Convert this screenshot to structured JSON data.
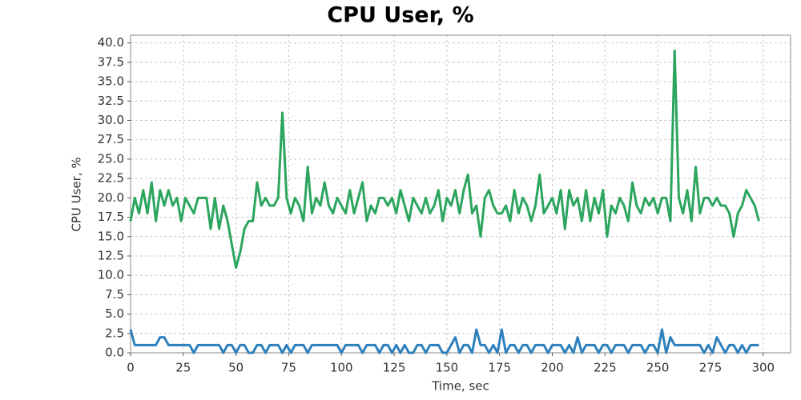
{
  "chart_data": {
    "type": "line",
    "title": "CPU User, %",
    "xlabel": "Time, sec",
    "ylabel": "CPU User, %",
    "x": [
      0,
      2,
      4,
      6,
      8,
      10,
      12,
      14,
      16,
      18,
      20,
      22,
      24,
      26,
      28,
      30,
      32,
      34,
      36,
      38,
      40,
      42,
      44,
      46,
      48,
      50,
      52,
      54,
      56,
      58,
      60,
      62,
      64,
      66,
      68,
      70,
      72,
      74,
      76,
      78,
      80,
      82,
      84,
      86,
      88,
      90,
      92,
      94,
      96,
      98,
      100,
      102,
      104,
      106,
      108,
      110,
      112,
      114,
      116,
      118,
      120,
      122,
      124,
      126,
      128,
      130,
      132,
      134,
      136,
      138,
      140,
      142,
      144,
      146,
      148,
      150,
      152,
      154,
      156,
      158,
      160,
      162,
      164,
      166,
      168,
      170,
      172,
      174,
      176,
      178,
      180,
      182,
      184,
      186,
      188,
      190,
      192,
      194,
      196,
      198,
      200,
      202,
      204,
      206,
      208,
      210,
      212,
      214,
      216,
      218,
      220,
      222,
      224,
      226,
      228,
      230,
      232,
      234,
      236,
      238,
      240,
      242,
      244,
      246,
      248,
      250,
      252,
      254,
      256,
      258,
      260,
      262,
      264,
      266,
      268,
      270,
      272,
      274,
      276,
      278,
      280,
      282,
      284,
      286,
      288,
      290,
      292,
      294,
      296,
      298
    ],
    "series": [
      {
        "color": "#2ca55e",
        "values": [
          17,
          20,
          18,
          21,
          18,
          22,
          17,
          21,
          19,
          21,
          19,
          20,
          17,
          20,
          19,
          18,
          20,
          20,
          20,
          16,
          20,
          16,
          19,
          17,
          14,
          11,
          13,
          16,
          17,
          17,
          22,
          19,
          20,
          19,
          19,
          20,
          31,
          20,
          18,
          20,
          19,
          17,
          24,
          18,
          20,
          19,
          22,
          19,
          18,
          20,
          19,
          18,
          21,
          18,
          20,
          22,
          17,
          19,
          18,
          20,
          20,
          19,
          20,
          18,
          21,
          19,
          17,
          20,
          19,
          18,
          20,
          18,
          19,
          21,
          17,
          20,
          19,
          21,
          18,
          21,
          23,
          18,
          19,
          15,
          20,
          21,
          19,
          18,
          18,
          19,
          17,
          21,
          18,
          20,
          19,
          17,
          19,
          23,
          18,
          19,
          20,
          18,
          21,
          16,
          21,
          19,
          20,
          17,
          21,
          17,
          20,
          18,
          21,
          15,
          19,
          18,
          20,
          19,
          17,
          22,
          19,
          18,
          20,
          19,
          20,
          18,
          20,
          20,
          17,
          39,
          20,
          18,
          21,
          17,
          24,
          18,
          20,
          20,
          19,
          20,
          19,
          19,
          18,
          15,
          18,
          19,
          21,
          20,
          19,
          17
        ]
      },
      {
        "color": "#2e80bd",
        "values": [
          3,
          1,
          1,
          1,
          1,
          1,
          1,
          2,
          2,
          1,
          1,
          1,
          1,
          1,
          1,
          0,
          1,
          1,
          1,
          1,
          1,
          1,
          0,
          1,
          1,
          0,
          1,
          1,
          0,
          0,
          1,
          1,
          0,
          1,
          1,
          1,
          0,
          1,
          0,
          1,
          1,
          1,
          0,
          1,
          1,
          1,
          1,
          1,
          1,
          1,
          0,
          1,
          1,
          1,
          1,
          0,
          1,
          1,
          1,
          0,
          1,
          1,
          0,
          1,
          0,
          1,
          0,
          0,
          1,
          1,
          0,
          1,
          1,
          1,
          0,
          0,
          1,
          2,
          0,
          1,
          1,
          0,
          3,
          1,
          1,
          0,
          1,
          0,
          3,
          0,
          1,
          1,
          0,
          1,
          1,
          0,
          1,
          1,
          1,
          0,
          1,
          1,
          1,
          0,
          1,
          0,
          2,
          0,
          1,
          1,
          1,
          0,
          1,
          1,
          0,
          1,
          1,
          1,
          0,
          1,
          1,
          1,
          0,
          1,
          1,
          0,
          3,
          0,
          2,
          1,
          1,
          1,
          1,
          1,
          1,
          1,
          0,
          1,
          0,
          2,
          1,
          0,
          1,
          1,
          0,
          1,
          0,
          1,
          1,
          1
        ]
      }
    ],
    "xlim": [
      0,
      313
    ],
    "xticks": [
      0,
      25,
      50,
      75,
      100,
      125,
      150,
      175,
      200,
      225,
      250,
      275,
      300
    ],
    "ylim": [
      0,
      41
    ],
    "yticks": [
      {
        "value": 0,
        "label": "0.0"
      },
      {
        "value": 2.5,
        "label": "2.5"
      },
      {
        "value": 5,
        "label": "5.0"
      },
      {
        "value": 7.5,
        "label": "7.5"
      },
      {
        "value": 10,
        "label": "10.0"
      },
      {
        "value": 12.5,
        "label": "12.5"
      },
      {
        "value": 15,
        "label": "15.0"
      },
      {
        "value": 17.5,
        "label": "17.5"
      },
      {
        "value": 20,
        "label": "20.0"
      },
      {
        "value": 22.5,
        "label": "22.5"
      },
      {
        "value": 25,
        "label": "25.0"
      },
      {
        "value": 27.5,
        "label": "27.5"
      },
      {
        "value": 30,
        "label": "30.0"
      },
      {
        "value": 32.5,
        "label": "32.5"
      },
      {
        "value": 35,
        "label": "35.0"
      },
      {
        "value": 37.5,
        "label": "37.5"
      },
      {
        "value": 40,
        "label": "40.0"
      }
    ],
    "grid": true
  }
}
